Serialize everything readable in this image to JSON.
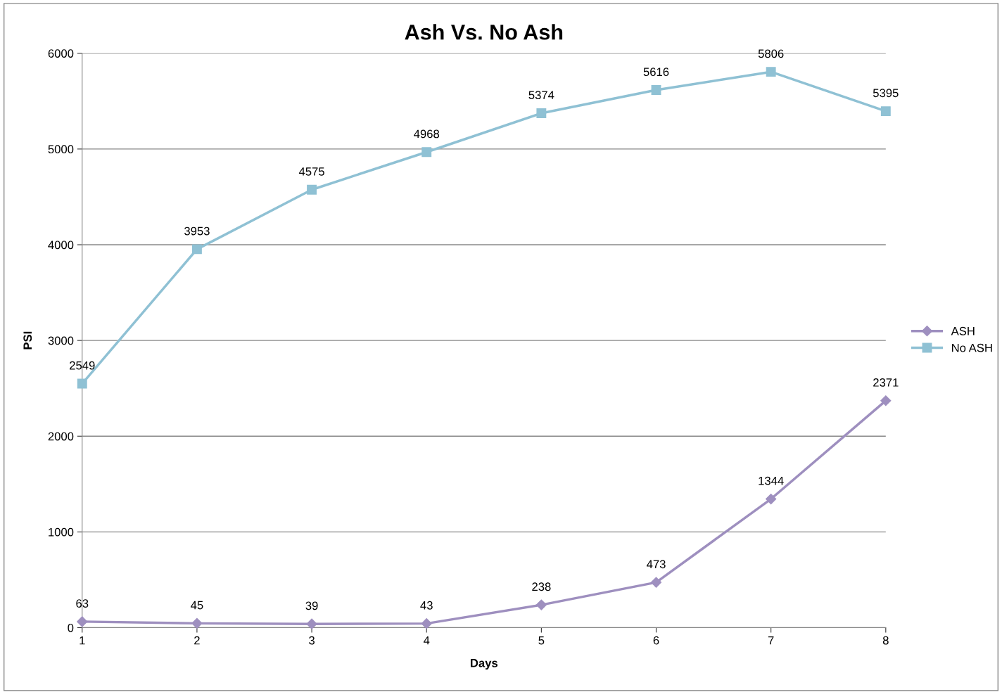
{
  "chart_data": {
    "type": "line",
    "title": "Ash Vs. No Ash",
    "xlabel": "Days",
    "ylabel": "PSI",
    "x": [
      1,
      2,
      3,
      4,
      5,
      6,
      7,
      8
    ],
    "series": [
      {
        "name": "ASH",
        "color": "#9e8fbf",
        "marker": "diamond",
        "values": [
          63,
          45,
          39,
          43,
          238,
          473,
          1344,
          2371
        ]
      },
      {
        "name": "No ASH",
        "color": "#8fc1d4",
        "marker": "square",
        "values": [
          2549,
          3953,
          4575,
          4968,
          5374,
          5616,
          5806,
          5395
        ]
      }
    ],
    "xlim": [
      1,
      8
    ],
    "xticks": [
      1,
      2,
      3,
      4,
      5,
      6,
      7,
      8
    ],
    "ylim": [
      0,
      6000
    ],
    "yticks": [
      0,
      1000,
      2000,
      3000,
      4000,
      5000,
      6000
    ],
    "grid": "y",
    "legend": "right",
    "data_labels": true,
    "line_style": "solid"
  }
}
